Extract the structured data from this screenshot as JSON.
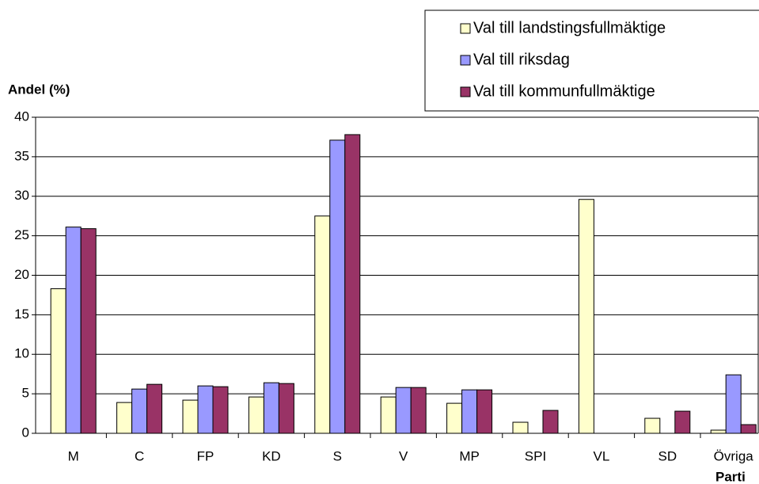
{
  "chart_data": {
    "type": "bar",
    "y_label": "Andel (%)",
    "x_label": "Parti",
    "categories": [
      "M",
      "C",
      "FP",
      "KD",
      "S",
      "V",
      "MP",
      "SPI",
      "VL",
      "SD",
      "Övriga"
    ],
    "series": [
      {
        "name": "Val till landstingsfullmäktige",
        "color": "#ffffcc",
        "values": [
          18.3,
          3.9,
          4.2,
          4.6,
          27.5,
          4.6,
          3.8,
          1.4,
          29.6,
          1.9,
          0.4
        ]
      },
      {
        "name": "Val till riksdag",
        "color": "#9999ff",
        "values": [
          26.1,
          5.6,
          6.0,
          6.4,
          37.1,
          5.8,
          5.5,
          null,
          null,
          null,
          7.4
        ]
      },
      {
        "name": "Val till kommunfullmäktige",
        "color": "#993366",
        "values": [
          25.9,
          6.2,
          5.9,
          6.3,
          37.8,
          5.8,
          5.5,
          2.9,
          null,
          2.8,
          1.1
        ]
      }
    ],
    "ylim": [
      0,
      40
    ],
    "yticks": [
      0,
      5,
      10,
      15,
      20,
      25,
      30,
      35,
      40
    ],
    "grid": true,
    "legend": "top-right"
  }
}
